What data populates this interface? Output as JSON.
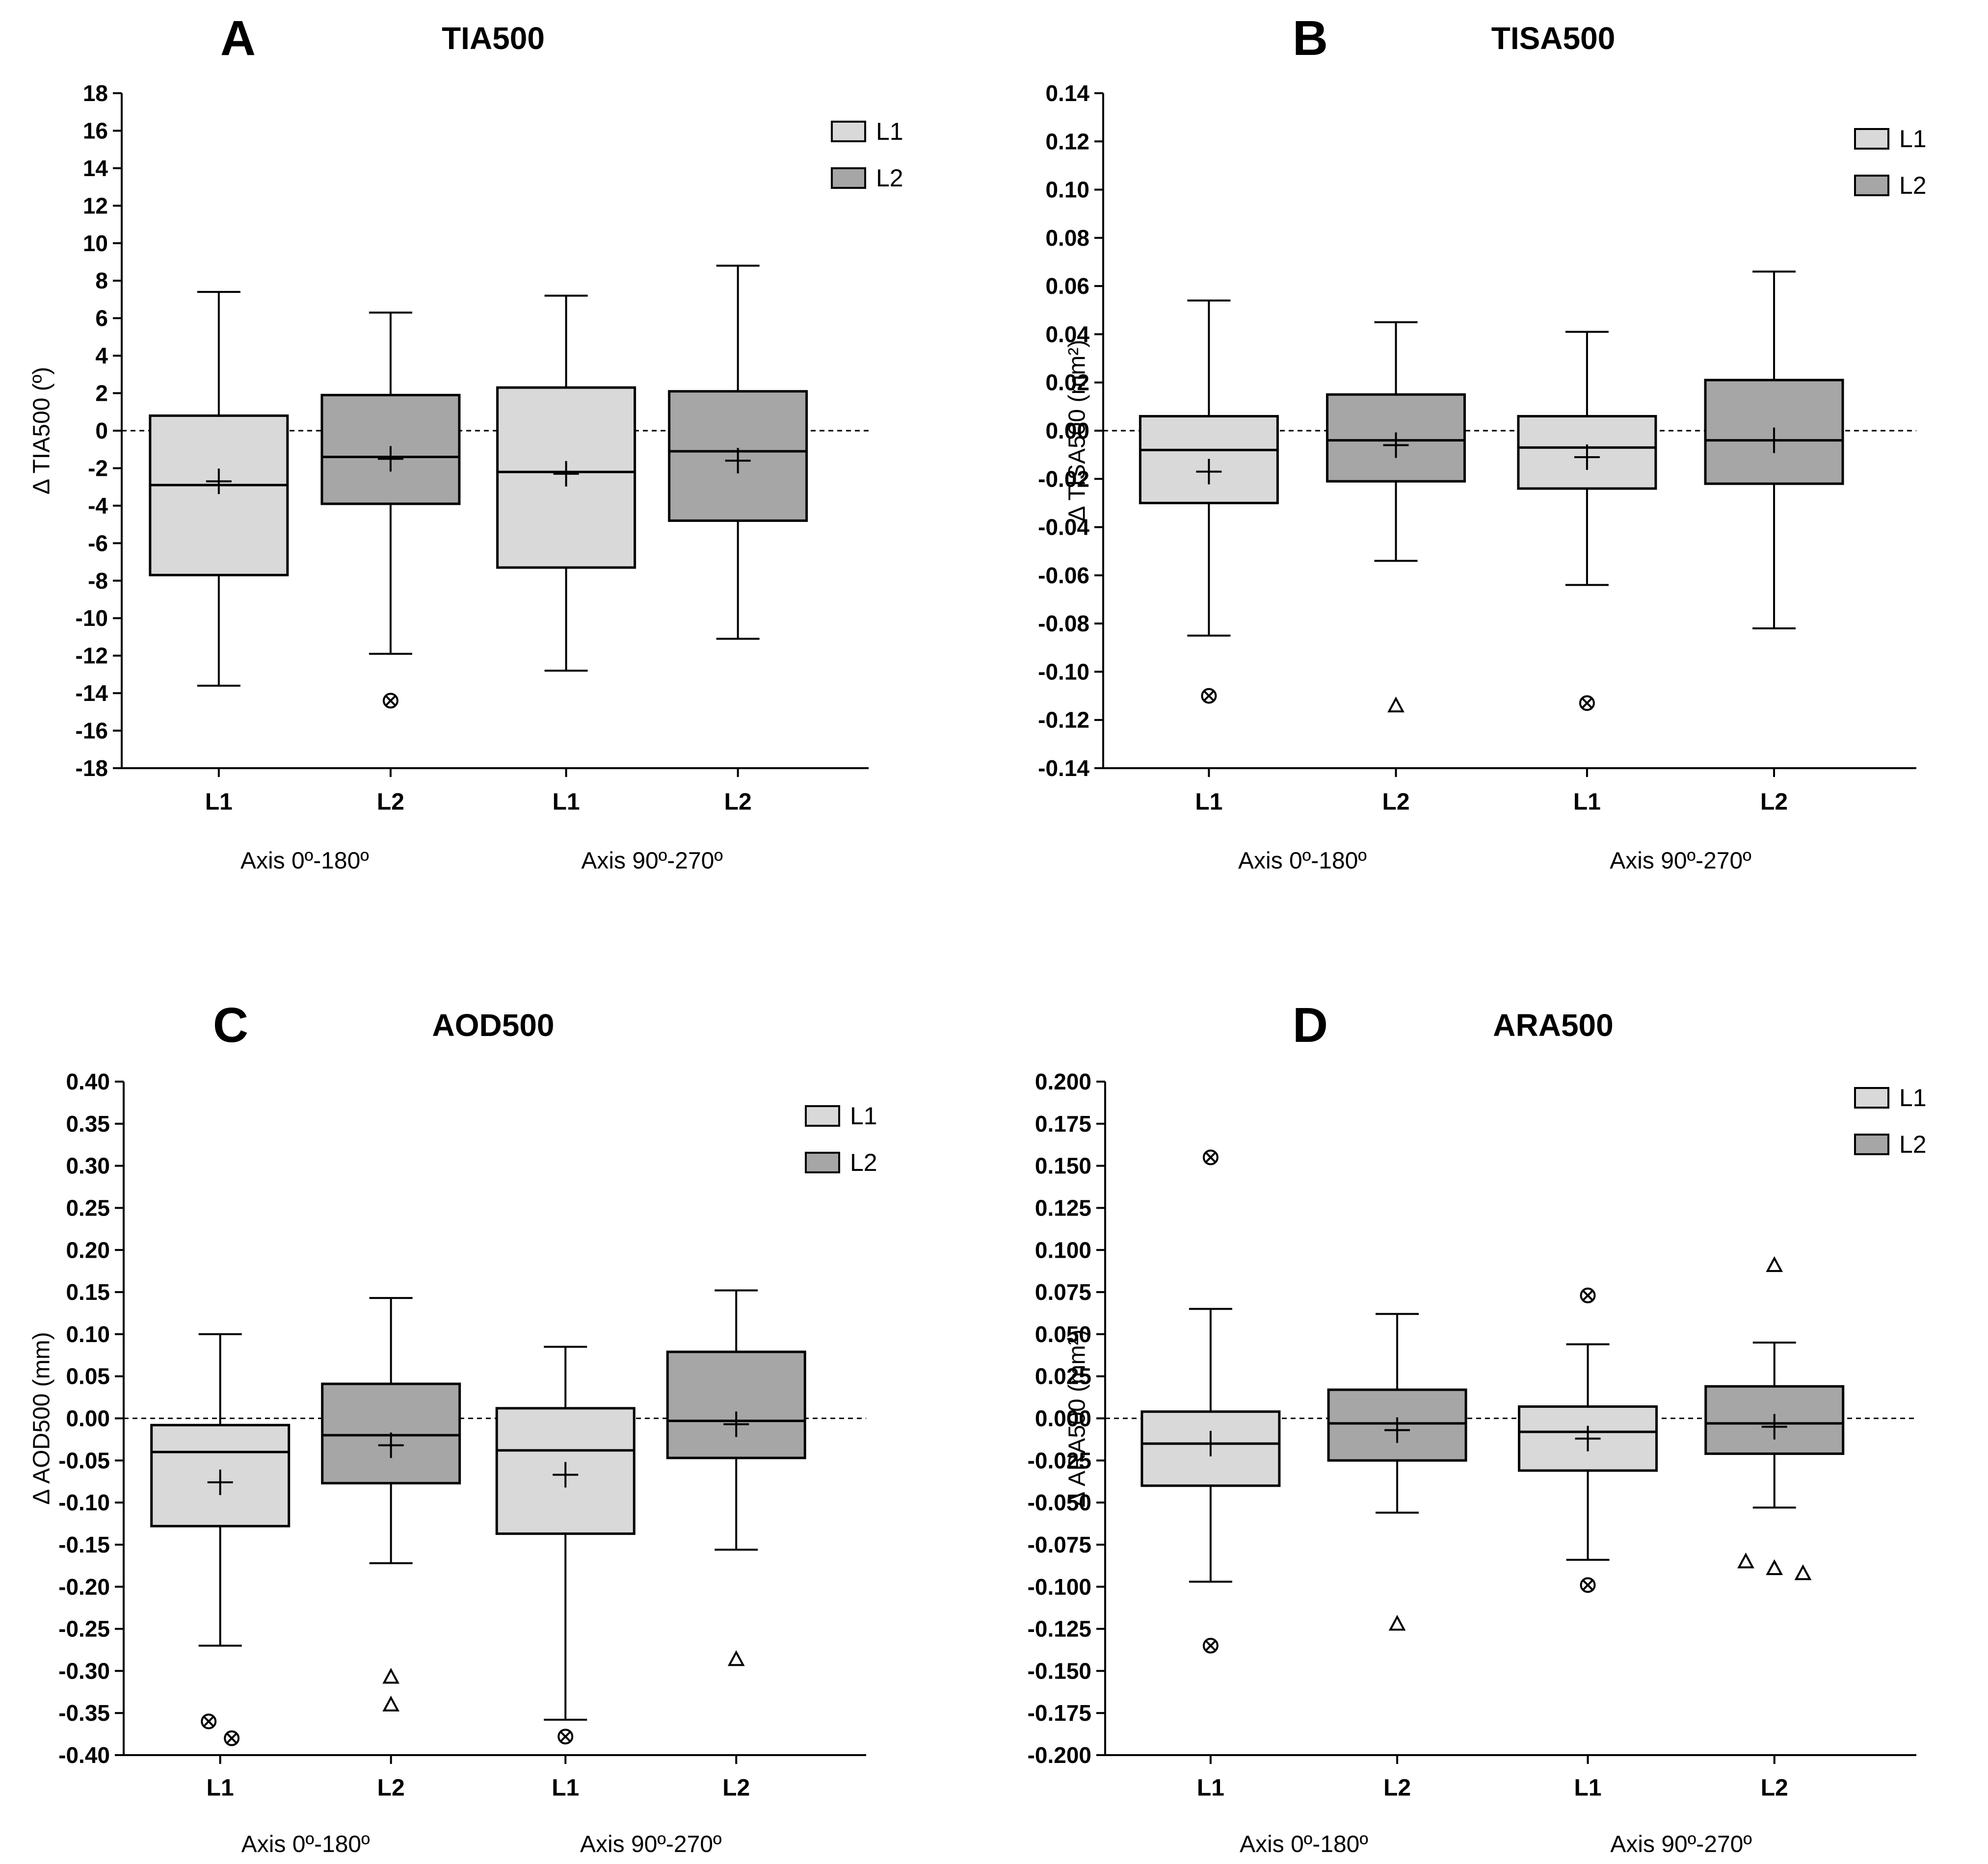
{
  "figure": {
    "colors": {
      "L1": "#d9d9d9",
      "L2": "#a6a6a6",
      "stroke": "#000000"
    },
    "icons": {
      "outlier_circle": "circle-x-icon",
      "outlier_triangle": "triangle-icon",
      "mean": "plus-icon"
    }
  },
  "chart_data": [
    {
      "letter": "A",
      "title": "TIA500",
      "type": "box",
      "ylabel": "Δ TIA500 (º)",
      "ylim": [
        -18,
        18
      ],
      "ticks": [
        "18",
        "16",
        "14",
        "12",
        "10",
        "8",
        "6",
        "4",
        "2",
        "0",
        "-2",
        "-4",
        "-6",
        "-8",
        "-10",
        "-12",
        "-14",
        "-16",
        "-18"
      ],
      "tick_values": [
        18,
        16,
        14,
        12,
        10,
        8,
        6,
        4,
        2,
        0,
        -2,
        -4,
        -6,
        -8,
        -10,
        -12,
        -14,
        -16,
        -18
      ],
      "legend": [
        "L1",
        "L2"
      ],
      "groups": [
        "Axis 0º-180º",
        "Axis 90º-270º"
      ],
      "boxes": [
        {
          "cat": "L1",
          "series": "L1",
          "min": -13.6,
          "q1": -7.7,
          "median": -2.9,
          "q3": 0.8,
          "max": 7.4,
          "mean": -2.7,
          "outliers": []
        },
        {
          "cat": "L2",
          "series": "L2",
          "min": -11.9,
          "q1": -3.9,
          "median": -1.4,
          "q3": 1.9,
          "max": 6.3,
          "mean": -1.5,
          "outliers": [
            {
              "v": -14.4,
              "shape": "circle",
              "dx": 0
            }
          ]
        },
        {
          "cat": "L1",
          "series": "L1",
          "min": -12.8,
          "q1": -7.3,
          "median": -2.2,
          "q3": 2.3,
          "max": 7.2,
          "mean": -2.3,
          "outliers": []
        },
        {
          "cat": "L2",
          "series": "L2",
          "min": -11.1,
          "q1": -4.8,
          "median": -1.1,
          "q3": 2.1,
          "max": 8.8,
          "mean": -1.6,
          "outliers": []
        }
      ]
    },
    {
      "letter": "B",
      "title": "TISA500",
      "type": "box",
      "ylabel": "Δ TISA500 (mm²)",
      "ylim": [
        -0.14,
        0.14
      ],
      "ticks": [
        "0.14",
        "0.12",
        "0.10",
        "0.08",
        "0.06",
        "0.04",
        "0.02",
        "0.00",
        "-0.02",
        "-0.04",
        "-0.06",
        "-0.08",
        "-0.10",
        "-0.12",
        "-0.14"
      ],
      "tick_values": [
        0.14,
        0.12,
        0.1,
        0.08,
        0.06,
        0.04,
        0.02,
        0.0,
        -0.02,
        -0.04,
        -0.06,
        -0.08,
        -0.1,
        -0.12,
        -0.14
      ],
      "legend": [
        "L1",
        "L2"
      ],
      "groups": [
        "Axis 0º-180º",
        "Axis 90º-270º"
      ],
      "boxes": [
        {
          "cat": "L1",
          "series": "L1",
          "min": -0.085,
          "q1": -0.03,
          "median": -0.008,
          "q3": 0.006,
          "max": 0.054,
          "mean": -0.017,
          "outliers": [
            {
              "v": -0.11,
              "shape": "circle",
              "dx": 0
            }
          ]
        },
        {
          "cat": "L2",
          "series": "L2",
          "min": -0.054,
          "q1": -0.021,
          "median": -0.004,
          "q3": 0.015,
          "max": 0.045,
          "mean": -0.006,
          "outliers": [
            {
              "v": -0.114,
              "shape": "triangle",
              "dx": 0
            }
          ]
        },
        {
          "cat": "L1",
          "series": "L1",
          "min": -0.064,
          "q1": -0.024,
          "median": -0.007,
          "q3": 0.006,
          "max": 0.041,
          "mean": -0.011,
          "outliers": [
            {
              "v": -0.113,
              "shape": "circle",
              "dx": 0
            }
          ]
        },
        {
          "cat": "L2",
          "series": "L2",
          "min": -0.082,
          "q1": -0.022,
          "median": -0.004,
          "q3": 0.021,
          "max": 0.066,
          "mean": -0.004,
          "outliers": []
        }
      ]
    },
    {
      "letter": "C",
      "title": "AOD500",
      "type": "box",
      "ylabel": "Δ AOD500 (mm)",
      "ylim": [
        -0.4,
        0.4
      ],
      "ticks": [
        "0.40",
        "0.35",
        "0.30",
        "0.25",
        "0.20",
        "0.15",
        "0.10",
        "0.05",
        "0.00",
        "-0.05",
        "-0.10",
        "-0.15",
        "-0.20",
        "-0.25",
        "-0.30",
        "-0.35",
        "-0.40"
      ],
      "tick_values": [
        0.4,
        0.35,
        0.3,
        0.25,
        0.2,
        0.15,
        0.1,
        0.05,
        0.0,
        -0.05,
        -0.1,
        -0.15,
        -0.2,
        -0.25,
        -0.3,
        -0.35,
        -0.4
      ],
      "legend": [
        "L1",
        "L2"
      ],
      "groups": [
        "Axis 0º-180º",
        "Axis 90º-270º"
      ],
      "boxes": [
        {
          "cat": "L1",
          "series": "L1",
          "min": -0.27,
          "q1": -0.128,
          "median": -0.04,
          "q3": -0.008,
          "max": 0.1,
          "mean": -0.076,
          "outliers": [
            {
              "v": -0.36,
              "shape": "circle",
              "dx": -0.22
            },
            {
              "v": -0.38,
              "shape": "circle",
              "dx": 0.22
            }
          ]
        },
        {
          "cat": "L2",
          "series": "L2",
          "min": -0.172,
          "q1": -0.077,
          "median": -0.02,
          "q3": 0.041,
          "max": 0.143,
          "mean": -0.032,
          "outliers": [
            {
              "v": -0.307,
              "shape": "triangle",
              "dx": 0
            },
            {
              "v": -0.34,
              "shape": "triangle",
              "dx": 0
            }
          ]
        },
        {
          "cat": "L1",
          "series": "L1",
          "min": -0.358,
          "q1": -0.137,
          "median": -0.038,
          "q3": 0.012,
          "max": 0.085,
          "mean": -0.067,
          "outliers": [
            {
              "v": -0.378,
              "shape": "circle",
              "dx": 0
            }
          ]
        },
        {
          "cat": "L2",
          "series": "L2",
          "min": -0.156,
          "q1": -0.047,
          "median": -0.003,
          "q3": 0.079,
          "max": 0.152,
          "mean": -0.007,
          "outliers": [
            {
              "v": -0.286,
              "shape": "triangle",
              "dx": 0
            }
          ]
        }
      ]
    },
    {
      "letter": "D",
      "title": "ARA500",
      "type": "box",
      "ylabel": "Δ ARA500 (mm²)",
      "ylim": [
        -0.2,
        0.2
      ],
      "ticks": [
        "0.200",
        "0.175",
        "0.150",
        "0.125",
        "0.100",
        "0.075",
        "0.050",
        "0.025",
        "0.000",
        "-0.025",
        "-0.050",
        "-0.075",
        "-0.100",
        "-0.125",
        "-0.150",
        "-0.175",
        "-0.200"
      ],
      "tick_values": [
        0.2,
        0.175,
        0.15,
        0.125,
        0.1,
        0.075,
        0.05,
        0.025,
        0.0,
        -0.025,
        -0.05,
        -0.075,
        -0.1,
        -0.125,
        -0.15,
        -0.175,
        -0.2
      ],
      "legend": [
        "L1",
        "L2"
      ],
      "groups": [
        "Axis 0º-180º",
        "Axis 90º-270º"
      ],
      "boxes": [
        {
          "cat": "L1",
          "series": "L1",
          "min": -0.097,
          "q1": -0.04,
          "median": -0.015,
          "q3": 0.004,
          "max": 0.065,
          "mean": -0.015,
          "outliers": [
            {
              "v": 0.155,
              "shape": "circle",
              "dx": 0
            },
            {
              "v": -0.135,
              "shape": "circle",
              "dx": 0
            }
          ]
        },
        {
          "cat": "L2",
          "series": "L2",
          "min": -0.056,
          "q1": -0.025,
          "median": -0.003,
          "q3": 0.017,
          "max": 0.062,
          "mean": -0.007,
          "outliers": [
            {
              "v": -0.122,
              "shape": "triangle",
              "dx": 0
            }
          ]
        },
        {
          "cat": "L1",
          "series": "L1",
          "min": -0.084,
          "q1": -0.031,
          "median": -0.008,
          "q3": 0.007,
          "max": 0.044,
          "mean": -0.012,
          "outliers": [
            {
              "v": 0.073,
              "shape": "circle",
              "dx": 0
            },
            {
              "v": -0.099,
              "shape": "circle",
              "dx": 0
            }
          ]
        },
        {
          "cat": "L2",
          "series": "L2",
          "min": -0.053,
          "q1": -0.021,
          "median": -0.003,
          "q3": 0.019,
          "max": 0.045,
          "mean": -0.005,
          "outliers": [
            {
              "v": 0.091,
              "shape": "triangle",
              "dx": 0
            },
            {
              "v": -0.085,
              "shape": "triangle",
              "dx": -0.5
            },
            {
              "v": -0.089,
              "shape": "triangle",
              "dx": 0
            },
            {
              "v": -0.092,
              "shape": "triangle",
              "dx": 0.5
            }
          ]
        }
      ]
    }
  ]
}
